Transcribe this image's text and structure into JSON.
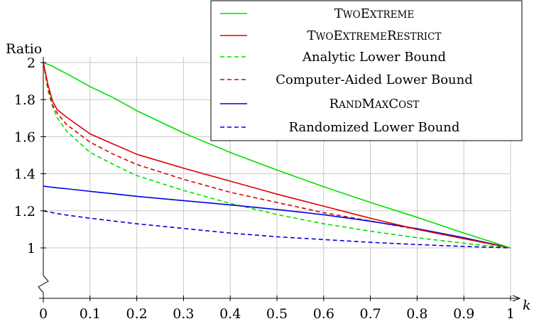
{
  "chart_data": {
    "type": "line",
    "xlabel": "k",
    "ylabel": "Ratio",
    "xlim": [
      0,
      1
    ],
    "ylim": [
      0.8,
      2.0
    ],
    "y_axis_break": true,
    "grid": true,
    "legend_position": "top-right",
    "x_ticks": [
      "0",
      "0.1",
      "0.2",
      "0.3",
      "0.4",
      "0.5",
      "0.6",
      "0.7",
      "0.8",
      "0.9",
      "1"
    ],
    "y_ticks": [
      "1",
      "1.2",
      "1.4",
      "1.6",
      "1.8",
      "2"
    ],
    "x": [
      0,
      0.01,
      0.02,
      0.03,
      0.05,
      0.1,
      0.15,
      0.2,
      0.3,
      0.4,
      0.5,
      0.6,
      0.7,
      0.8,
      0.9,
      1.0
    ],
    "series": [
      {
        "name": "TwoExtreme",
        "color": "#00e000",
        "dash": "solid",
        "values": [
          2.0,
          1.99,
          1.98,
          1.965,
          1.94,
          1.87,
          1.81,
          1.74,
          1.62,
          1.515,
          1.42,
          1.33,
          1.245,
          1.165,
          1.08,
          1.0
        ]
      },
      {
        "name": "TwoExtremeRestrict",
        "color": "#e00000",
        "dash": "solid",
        "values": [
          2.0,
          1.88,
          1.79,
          1.745,
          1.705,
          1.615,
          1.56,
          1.505,
          1.43,
          1.36,
          1.29,
          1.225,
          1.16,
          1.1,
          1.05,
          1.0
        ]
      },
      {
        "name": "Analytic Lower Bound",
        "color": "#00e000",
        "dash": "dashed",
        "values": [
          2.0,
          1.85,
          1.76,
          1.7,
          1.63,
          1.515,
          1.45,
          1.39,
          1.31,
          1.24,
          1.18,
          1.13,
          1.09,
          1.055,
          1.025,
          1.0
        ]
      },
      {
        "name": "Computer-Aided Lower Bound",
        "color": "#e00000",
        "dash": "dashed",
        "values": [
          2.0,
          1.86,
          1.77,
          1.725,
          1.665,
          1.57,
          1.505,
          1.45,
          1.37,
          1.3,
          1.245,
          1.19,
          1.145,
          1.1,
          1.05,
          1.0
        ]
      },
      {
        "name": "RandMaxCost",
        "color": "#0000e0",
        "dash": "solid",
        "values": [
          1.333,
          1.33,
          1.327,
          1.324,
          1.319,
          1.305,
          1.292,
          1.278,
          1.255,
          1.232,
          1.207,
          1.179,
          1.144,
          1.104,
          1.055,
          1.0
        ]
      },
      {
        "name": "Randomized Lower Bound",
        "color": "#0000e0",
        "dash": "dashed",
        "values": [
          1.2,
          1.195,
          1.19,
          1.185,
          1.177,
          1.16,
          1.145,
          1.13,
          1.105,
          1.08,
          1.06,
          1.045,
          1.03,
          1.018,
          1.008,
          1.0
        ]
      }
    ]
  },
  "legend": [
    {
      "id": "twoextreme",
      "label": "TwoExtreme",
      "smallcaps": [
        [
          "T",
          "big"
        ],
        [
          "WO",
          "small"
        ],
        [
          "E",
          "big"
        ],
        [
          "XTREME",
          "small"
        ]
      ]
    },
    {
      "id": "twoextremerestrict",
      "label": "TwoExtremeRestrict",
      "smallcaps": [
        [
          "T",
          "big"
        ],
        [
          "WO",
          "small"
        ],
        [
          "E",
          "big"
        ],
        [
          "XTREME",
          "small"
        ],
        [
          "R",
          "big"
        ],
        [
          "ESTRICT",
          "small"
        ]
      ]
    },
    {
      "id": "analytic",
      "label": "Analytic Lower Bound"
    },
    {
      "id": "computer-aided",
      "label": "Computer-Aided Lower Bound"
    },
    {
      "id": "randmaxcost",
      "label": "RandMaxCost",
      "smallcaps": [
        [
          "R",
          "big"
        ],
        [
          "AND",
          "small"
        ],
        [
          "M",
          "big"
        ],
        [
          "AX",
          "small"
        ],
        [
          "C",
          "big"
        ],
        [
          "OST",
          "small"
        ]
      ]
    },
    {
      "id": "randomized",
      "label": "Randomized Lower Bound"
    }
  ]
}
